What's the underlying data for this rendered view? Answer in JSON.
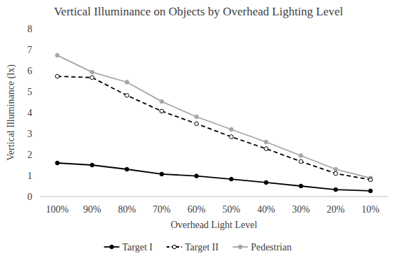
{
  "chart_data": {
    "type": "line",
    "title": "Vertical Illuminance on Objects by Overhead Lighting Level",
    "x_label": "Overhead Light Level",
    "y_label": "Vertical Illuminance (lx)",
    "categories": [
      "100%",
      "90%",
      "80%",
      "70%",
      "60%",
      "50%",
      "40%",
      "30%",
      "20%",
      "10%"
    ],
    "series": [
      {
        "name": "Target I",
        "color": "#000000",
        "marker": "circle",
        "line_style": "solid",
        "values": [
          1.6,
          1.5,
          1.3,
          1.07,
          0.98,
          0.83,
          0.67,
          0.5,
          0.33,
          0.27
        ]
      },
      {
        "name": "Target II",
        "color": "#000000",
        "marker": "open-circle",
        "line_style": "dashed",
        "values": [
          5.73,
          5.67,
          4.82,
          4.07,
          3.47,
          2.85,
          2.28,
          1.67,
          1.1,
          0.8
        ]
      },
      {
        "name": "Pedestrian",
        "color": "#a6a6a6",
        "marker": "circle",
        "line_style": "solid",
        "values": [
          6.73,
          5.93,
          5.45,
          4.53,
          3.8,
          3.2,
          2.6,
          1.95,
          1.3,
          0.88
        ]
      }
    ],
    "ylim": [
      0,
      8
    ],
    "yticks": [
      0,
      1,
      2,
      3,
      4,
      5,
      6,
      7,
      8
    ],
    "grid": false,
    "legend": "bottom"
  }
}
